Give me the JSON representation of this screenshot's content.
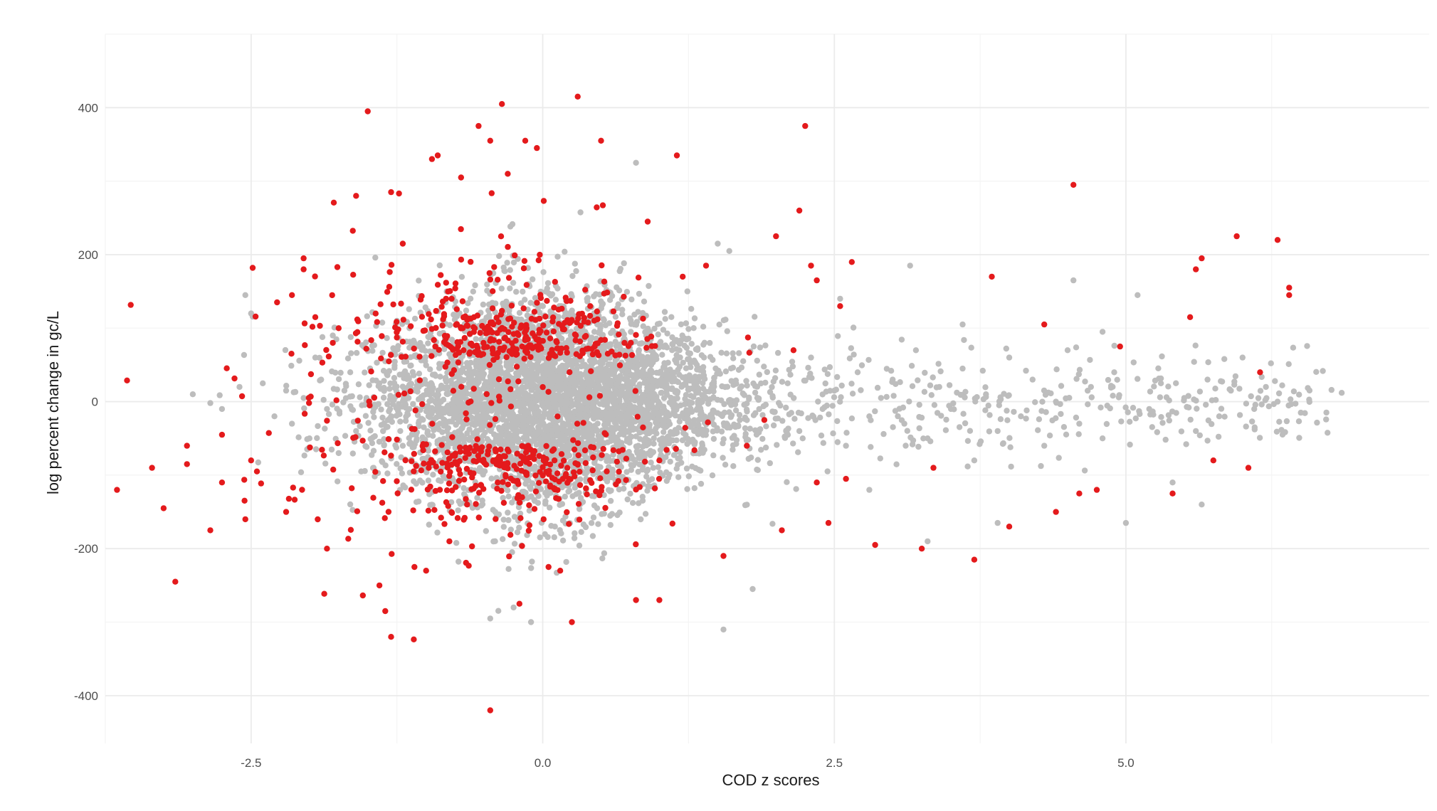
{
  "chart_data": {
    "type": "scatter",
    "title": "",
    "xlabel": "COD z scores",
    "ylabel": "log percent change in gc/L",
    "xlim": [
      -3.75,
      7.6
    ],
    "ylim": [
      -465,
      500
    ],
    "x_ticks": [
      -2.5,
      0.0,
      2.5,
      5.0
    ],
    "x_tick_labels": [
      "-2.5",
      "0.0",
      "2.5",
      "5.0"
    ],
    "y_ticks": [
      -400,
      -200,
      0,
      200,
      400
    ],
    "y_tick_labels": [
      "-400",
      "-200",
      "0",
      "200",
      "400"
    ],
    "grid": true,
    "legend": "none",
    "colors": {
      "grey": "#bdbdbd",
      "red": "#e41a1c",
      "grid_major": "#ebebeb",
      "grid_minor": "#f4f4f4"
    },
    "series": [
      {
        "color": "grey",
        "points": [
          [
            -3.0,
            10
          ],
          [
            -2.85,
            -2
          ],
          [
            -2.75,
            -10
          ],
          [
            -2.6,
            20
          ],
          [
            -2.55,
            145
          ],
          [
            -2.5,
            120
          ],
          [
            -2.4,
            25
          ],
          [
            -2.3,
            -20
          ],
          [
            -2.2,
            15
          ],
          [
            -2.15,
            -30
          ],
          [
            -2.05,
            5
          ],
          [
            -2.0,
            -50
          ],
          [
            -1.95,
            60
          ],
          [
            -1.9,
            30
          ],
          [
            -1.85,
            -10
          ],
          [
            -1.8,
            90
          ],
          [
            -1.75,
            -70
          ],
          [
            -1.7,
            15
          ],
          [
            -1.65,
            40
          ],
          [
            -1.6,
            -40
          ],
          [
            -1.55,
            -5
          ],
          [
            -1.5,
            70
          ],
          [
            -1.45,
            -90
          ],
          [
            -1.4,
            25
          ],
          [
            -1.35,
            55
          ],
          [
            -1.3,
            -20
          ],
          [
            -1.25,
            110
          ],
          [
            -1.2,
            -60
          ],
          [
            -1.15,
            5
          ],
          [
            -1.1,
            80
          ],
          [
            0.8,
            325
          ],
          [
            1.5,
            215
          ],
          [
            1.6,
            205
          ],
          [
            1.8,
            -255
          ],
          [
            1.55,
            -310
          ],
          [
            -0.45,
            -295
          ],
          [
            -0.1,
            -300
          ],
          [
            -0.25,
            -280
          ],
          [
            2.1,
            25
          ],
          [
            2.2,
            -40
          ],
          [
            2.3,
            60
          ],
          [
            2.4,
            -10
          ],
          [
            2.5,
            15
          ],
          [
            2.6,
            -60
          ],
          [
            2.7,
            40
          ],
          [
            2.8,
            -20
          ],
          [
            2.9,
            5
          ],
          [
            3.0,
            30
          ],
          [
            3.1,
            -30
          ],
          [
            3.2,
            70
          ],
          [
            3.3,
            -50
          ],
          [
            3.4,
            20
          ],
          [
            3.5,
            -10
          ],
          [
            3.6,
            45
          ],
          [
            3.7,
            -80
          ],
          [
            3.8,
            10
          ],
          [
            3.9,
            -40
          ],
          [
            4.0,
            60
          ],
          [
            4.1,
            -20
          ],
          [
            4.2,
            30
          ],
          [
            4.3,
            -60
          ],
          [
            4.4,
            0
          ],
          [
            4.5,
            70
          ],
          [
            4.6,
            -30
          ],
          [
            4.7,
            20
          ],
          [
            4.8,
            -50
          ],
          [
            4.9,
            40
          ],
          [
            5.0,
            -165
          ],
          [
            5.1,
            145
          ],
          [
            5.2,
            -10
          ],
          [
            5.3,
            25
          ],
          [
            5.4,
            -110
          ],
          [
            5.5,
            5
          ],
          [
            5.6,
            -40
          ],
          [
            5.7,
            30
          ],
          [
            5.8,
            -20
          ],
          [
            5.9,
            15
          ],
          [
            6.0,
            60
          ],
          [
            6.1,
            -10
          ],
          [
            6.2,
            20
          ],
          [
            6.3,
            0
          ],
          [
            6.5,
            -15
          ],
          [
            6.85,
            12
          ],
          [
            5.65,
            -140
          ],
          [
            4.55,
            165
          ],
          [
            3.15,
            185
          ],
          [
            3.6,
            105
          ],
          [
            3.9,
            -165
          ],
          [
            2.8,
            -120
          ],
          [
            2.55,
            140
          ],
          [
            3.3,
            -190
          ],
          [
            4.8,
            95
          ]
        ]
      },
      {
        "color": "red",
        "points": [
          [
            -3.65,
            -120
          ],
          [
            -3.35,
            -90
          ],
          [
            -3.25,
            -145
          ],
          [
            -3.15,
            -245
          ],
          [
            -3.05,
            -60
          ],
          [
            -3.05,
            -85
          ],
          [
            -2.85,
            -175
          ],
          [
            -2.75,
            -110
          ],
          [
            -2.75,
            -45
          ],
          [
            -2.55,
            -160
          ],
          [
            -2.5,
            -80
          ],
          [
            -2.45,
            -95
          ],
          [
            -2.2,
            -150
          ],
          [
            -2.15,
            145
          ],
          [
            -2.05,
            195
          ],
          [
            -2.05,
            180
          ],
          [
            -1.95,
            115
          ],
          [
            -1.85,
            -200
          ],
          [
            -1.8,
            80
          ],
          [
            -1.75,
            100
          ],
          [
            -1.6,
            280
          ],
          [
            -1.5,
            395
          ],
          [
            -1.3,
            285
          ],
          [
            -1.3,
            -320
          ],
          [
            -1.35,
            -285
          ],
          [
            -1.4,
            -250
          ],
          [
            -1.2,
            215
          ],
          [
            -1.1,
            -225
          ],
          [
            -1.0,
            -230
          ],
          [
            -0.95,
            330
          ],
          [
            -0.9,
            335
          ],
          [
            -0.8,
            -190
          ],
          [
            -0.7,
            305
          ],
          [
            -0.55,
            375
          ],
          [
            -0.45,
            355
          ],
          [
            -0.35,
            405
          ],
          [
            -0.3,
            310
          ],
          [
            -0.2,
            -275
          ],
          [
            -0.15,
            355
          ],
          [
            -0.05,
            345
          ],
          [
            0.05,
            -225
          ],
          [
            0.15,
            -230
          ],
          [
            0.3,
            415
          ],
          [
            0.25,
            -300
          ],
          [
            0.5,
            355
          ],
          [
            0.8,
            -270
          ],
          [
            1.0,
            -270
          ],
          [
            1.15,
            335
          ],
          [
            1.55,
            -210
          ],
          [
            2.0,
            225
          ],
          [
            2.2,
            260
          ],
          [
            2.25,
            375
          ],
          [
            2.3,
            185
          ],
          [
            2.35,
            165
          ],
          [
            2.45,
            -165
          ],
          [
            2.55,
            130
          ],
          [
            2.65,
            190
          ],
          [
            2.85,
            -195
          ],
          [
            3.25,
            -200
          ],
          [
            3.7,
            -215
          ],
          [
            3.85,
            170
          ],
          [
            4.0,
            -170
          ],
          [
            4.3,
            105
          ],
          [
            4.4,
            -150
          ],
          [
            4.55,
            295
          ],
          [
            4.6,
            -125
          ],
          [
            4.75,
            -120
          ],
          [
            4.95,
            75
          ],
          [
            5.4,
            -125
          ],
          [
            5.55,
            115
          ],
          [
            5.6,
            180
          ],
          [
            5.65,
            195
          ],
          [
            5.75,
            -80
          ],
          [
            5.95,
            225
          ],
          [
            6.05,
            -90
          ],
          [
            6.15,
            40
          ],
          [
            6.3,
            220
          ],
          [
            6.4,
            155
          ],
          [
            6.4,
            145
          ],
          [
            -0.45,
            -420
          ],
          [
            2.05,
            -175
          ],
          [
            2.15,
            70
          ],
          [
            2.35,
            -110
          ],
          [
            2.6,
            -105
          ],
          [
            3.35,
            -90
          ],
          [
            1.9,
            -25
          ],
          [
            1.75,
            -60
          ],
          [
            1.2,
            170
          ],
          [
            1.4,
            185
          ],
          [
            0.9,
            245
          ]
        ]
      }
    ]
  }
}
